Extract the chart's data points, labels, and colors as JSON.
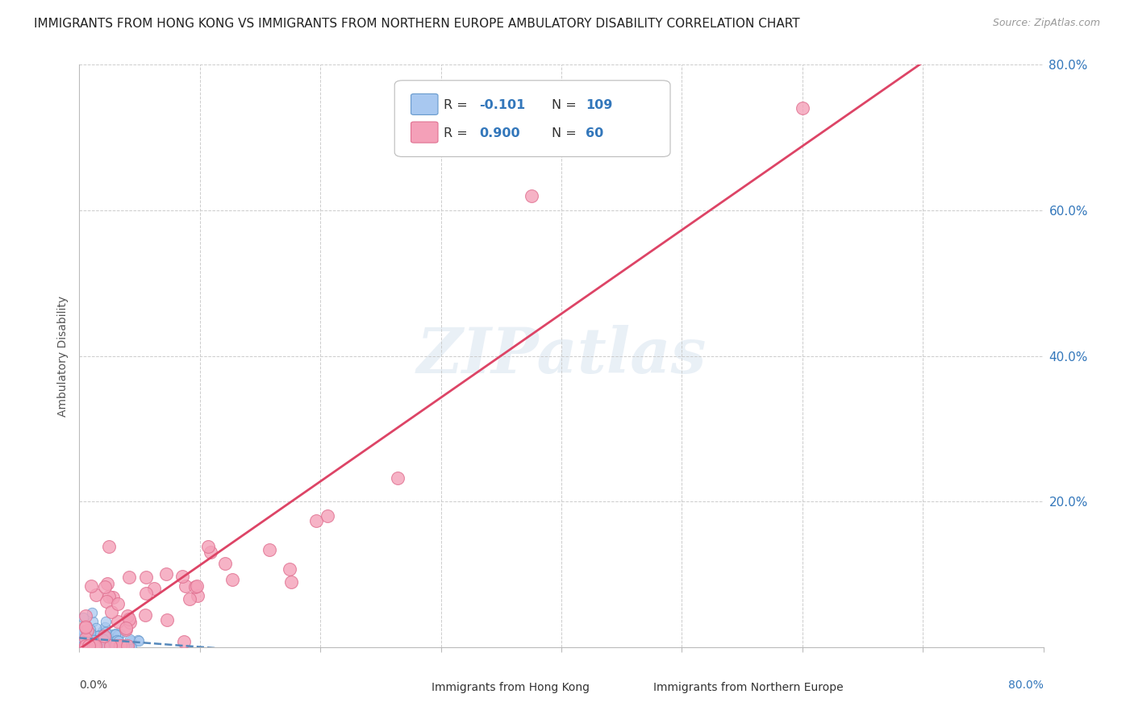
{
  "title": "IMMIGRANTS FROM HONG KONG VS IMMIGRANTS FROM NORTHERN EUROPE AMBULATORY DISABILITY CORRELATION CHART",
  "source": "Source: ZipAtlas.com",
  "xlabel_bottom_left": "0.0%",
  "xlabel_bottom_right": "80.0%",
  "ylabel": "Ambulatory Disability",
  "ytick_labels": [
    "20.0%",
    "40.0%",
    "60.0%",
    "80.0%"
  ],
  "ytick_values": [
    0.2,
    0.4,
    0.6,
    0.8
  ],
  "xlim": [
    0.0,
    0.8
  ],
  "ylim": [
    0.0,
    0.8
  ],
  "hk_color": "#a8c8f0",
  "ne_color": "#f4a0b8",
  "hk_edge_color": "#6699cc",
  "ne_edge_color": "#e07090",
  "trend_hk_color": "#5588bb",
  "trend_ne_color": "#dd4466",
  "watermark": "ZIPatlas",
  "background_color": "#ffffff",
  "title_fontsize": 11,
  "source_fontsize": 9,
  "hk_seed": 42,
  "ne_seed": 77,
  "hk_n": 109,
  "ne_n": 60,
  "hk_R": -0.101,
  "ne_R": 0.9,
  "legend_hk_color": "#a8c8f0",
  "legend_ne_color": "#f4a0b8",
  "legend_R_color": "#333333",
  "legend_N_color": "#3377bb"
}
